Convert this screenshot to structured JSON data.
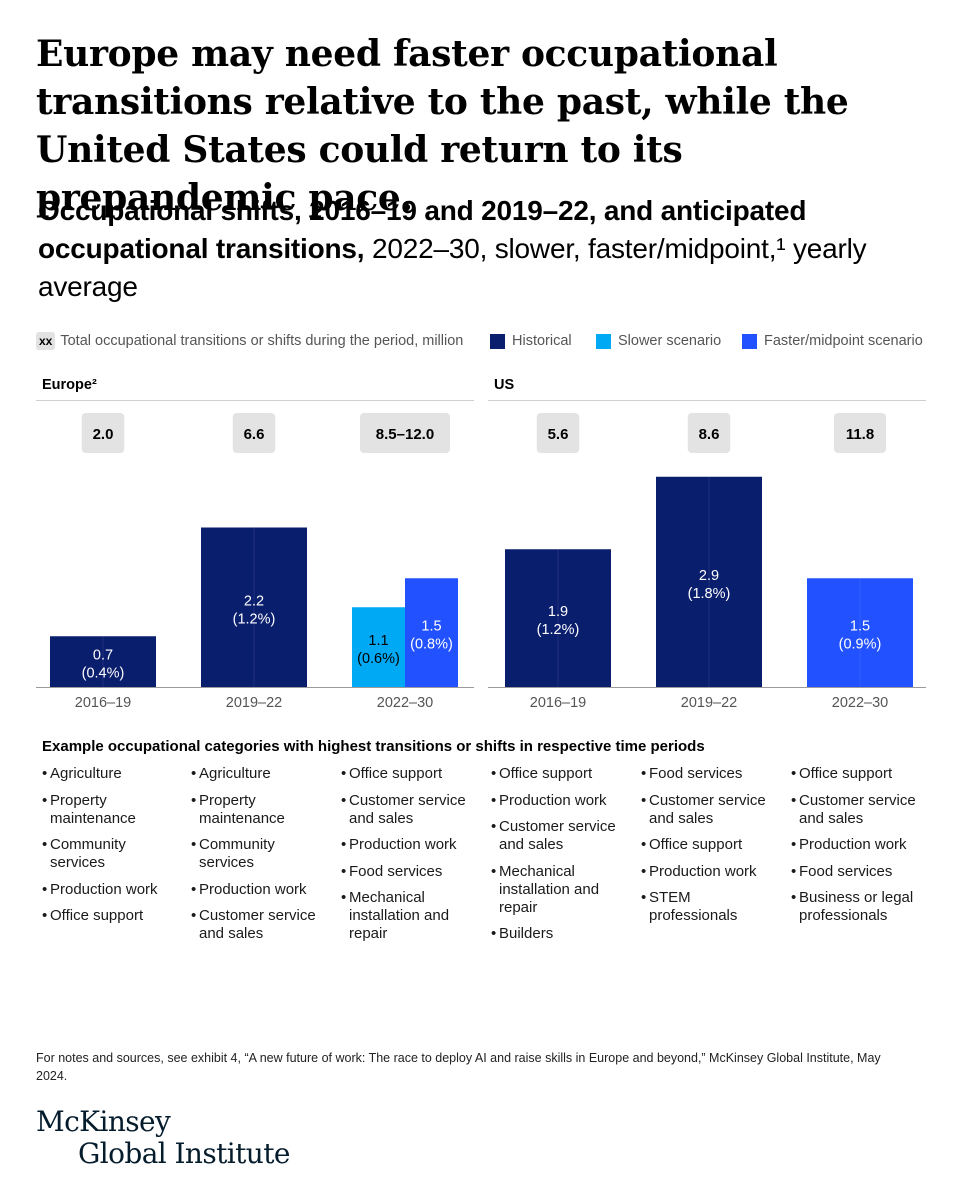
{
  "headline": "Europe may need faster occupational transitions relative to the past, while the United States could return to its prepandemic pace.",
  "subtitle": {
    "bold": "Occupational shifts, 2016–19 and 2019–22, and anticipated occupational transitions,",
    "regular": " 2022–30, slower, faster/midpoint,¹ yearly average"
  },
  "legend": {
    "xx_badge": "xx",
    "xx_label": "Total occupational transitions or shifts during the period, million",
    "items": [
      {
        "label": "Historical",
        "color": "#0a1e6e"
      },
      {
        "label": "Slower scenario",
        "color": "#00a9f4"
      },
      {
        "label": "Faster/midpoint scenario",
        "color": "#2251ff"
      }
    ]
  },
  "chart_data": [
    {
      "type": "bar",
      "title": "Europe²",
      "categories": [
        "2016–19",
        "2019–22",
        "2022–30"
      ],
      "totals": [
        "2.0",
        "6.6",
        "8.5–12.0"
      ],
      "bars": [
        {
          "category": "2016–19",
          "series": "Historical",
          "value": 0.7,
          "label": "0.7",
          "pct": "(0.4%)"
        },
        {
          "category": "2019–22",
          "series": "Historical",
          "value": 2.2,
          "label": "2.2",
          "pct": "(1.2%)"
        },
        {
          "category": "2022–30",
          "series": "Slower scenario",
          "value": 1.1,
          "label": "1.1",
          "pct": "(0.6%)"
        },
        {
          "category": "2022–30",
          "series": "Faster/midpoint scenario",
          "value": 1.5,
          "label": "1.5",
          "pct": "(0.8%)"
        }
      ],
      "ylim": [
        0,
        3.1
      ]
    },
    {
      "type": "bar",
      "title": "US",
      "categories": [
        "2016–19",
        "2019–22",
        "2022–30"
      ],
      "totals": [
        "5.6",
        "8.6",
        "11.8"
      ],
      "bars": [
        {
          "category": "2016–19",
          "series": "Historical",
          "value": 1.9,
          "label": "1.9",
          "pct": "(1.2%)"
        },
        {
          "category": "2019–22",
          "series": "Historical",
          "value": 2.9,
          "label": "2.9",
          "pct": "(1.8%)"
        },
        {
          "category": "2022–30",
          "series": "Faster/midpoint scenario",
          "value": 1.5,
          "label": "1.5",
          "pct": "(0.9%)"
        }
      ],
      "ylim": [
        0,
        3.1
      ]
    }
  ],
  "categories_title": "Example occupational categories with highest transitions or shifts in respective time periods",
  "category_columns": [
    [
      "Agriculture",
      "Property maintenance",
      "Community services",
      "Production work",
      "Office support"
    ],
    [
      "Agriculture",
      "Property maintenance",
      "Community services",
      "Production work",
      "Customer service and sales"
    ],
    [
      "Office support",
      "Customer service and sales",
      "Production work",
      "Food services",
      "Mechanical installation and repair"
    ],
    [
      "Office support",
      "Production work",
      "Customer service and sales",
      "Mechanical installation and repair",
      "Builders"
    ],
    [
      "Food services",
      "Customer service and sales",
      "Office support",
      "Production work",
      "STEM professionals"
    ],
    [
      "Office support",
      "Customer service and sales",
      "Production work",
      "Food services",
      "Business or legal professionals"
    ]
  ],
  "footnote": "For notes and sources, see exhibit 4, “A new future of work: The race to deploy AI and raise skills in Europe and beyond,” McKinsey Global Institute, May 2024.",
  "logo": {
    "line1": "McKinsey",
    "line2": "Global Institute"
  }
}
